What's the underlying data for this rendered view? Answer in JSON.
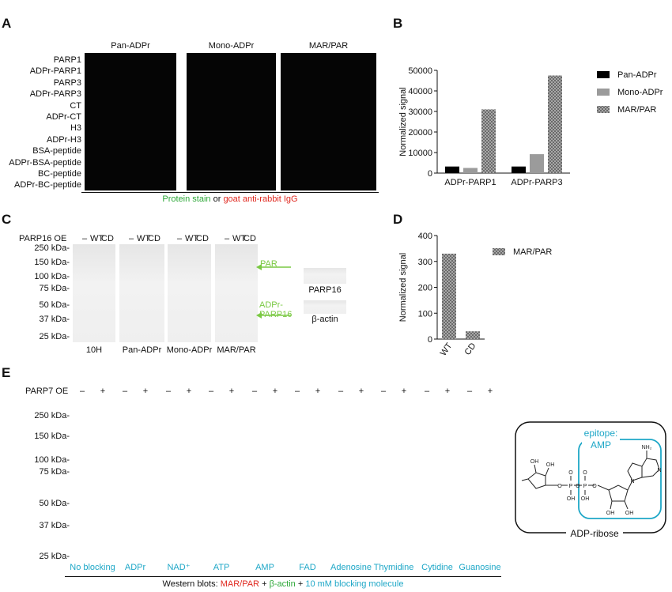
{
  "panel_letters": {
    "a": "A",
    "b": "B",
    "c": "C",
    "d": "D",
    "e": "E"
  },
  "panel_a": {
    "col_titles": [
      "Pan-ADPr",
      "Mono-ADPr",
      "MAR/PAR"
    ],
    "row_labels": [
      "PARP1",
      "ADPr-PARP1",
      "PARP3",
      "ADPr-PARP3",
      "CT",
      "ADPr-CT",
      "H3",
      "ADPr-H3",
      "BSA-peptide",
      "ADPr-BSA-peptide",
      "BC-peptide",
      "ADPr-BC-peptide"
    ],
    "caption_green": "Protein stain",
    "caption_mid": " or ",
    "caption_red": "goat anti-rabbit IgG",
    "colors": {
      "green": "#2fd12f",
      "red": "#ff2a1a"
    }
  },
  "chart_data": [
    {
      "type": "bar",
      "panel": "B",
      "categories": [
        "ADPr-PARP1",
        "ADPr-PARP3"
      ],
      "series": [
        {
          "name": "Pan-ADPr",
          "values": [
            3200,
            3200
          ]
        },
        {
          "name": "Mono-ADPr",
          "values": [
            2500,
            9200
          ]
        },
        {
          "name": "MAR/PAR",
          "values": [
            31000,
            47500
          ]
        }
      ],
      "ylabel": "Normalized signal",
      "ylim": [
        0,
        50000
      ],
      "yticks": [
        "0",
        "10000",
        "20000",
        "30000",
        "40000",
        "50000"
      ],
      "legend": "right"
    },
    {
      "type": "bar",
      "panel": "D",
      "categories": [
        "WT",
        "CD"
      ],
      "series": [
        {
          "name": "MAR/PAR",
          "values": [
            330,
            30
          ]
        }
      ],
      "ylabel": "Normalized signal",
      "ylim": [
        0,
        400
      ],
      "yticks": [
        "0",
        "100",
        "200",
        "300",
        "400"
      ],
      "legend": "right"
    }
  ],
  "panel_c": {
    "oe_label": "PARP16 OE",
    "lanes": [
      "–",
      "WT",
      "CD"
    ],
    "mw": [
      "250 kDa-",
      "150 kDa-",
      "100 kDa-",
      "75 kDa-",
      "50 kDa-",
      "37 kDa-",
      "25 kDa-"
    ],
    "blots": [
      "10H",
      "Pan-ADPr",
      "Mono-ADPr",
      "MAR/PAR"
    ],
    "arrow_par": "PAR",
    "arrow_adpr_1": "ADPr-",
    "arrow_adpr_2": "PARP16",
    "small_blot_1": "PARP16",
    "small_blot_2": "β-actin"
  },
  "panel_e": {
    "oe_label": "PARP7 OE",
    "lane_minus": "–",
    "lane_plus": "+",
    "mw": [
      "250 kDa-",
      "150 kDa-",
      "100 kDa-",
      "75 kDa-",
      "50 kDa-",
      "37 kDa-",
      "25 kDa-"
    ],
    "blocking": [
      "No blocking",
      "ADPr",
      "NAD⁺",
      "ATP",
      "AMP",
      "FAD",
      "Adenosine",
      "Thymidine",
      "Cytidine",
      "Guanosine"
    ],
    "caption_1": "Western blots: ",
    "caption_red": "MAR/PAR",
    "caption_2": " + ",
    "caption_green": "β-actin",
    "caption_3": " + ",
    "caption_cyan": "10 mM blocking molecule",
    "colors": {
      "red": "#ff2a1a",
      "green": "#2fe02f",
      "cyan": "#1ea7c7"
    }
  },
  "structure": {
    "epitope_line1": "epitope:",
    "epitope_line2": "AMP",
    "name": "ADP-ribose",
    "atoms": {
      "oh": "OH",
      "o": "O",
      "p": "P",
      "n": "N",
      "nh2": "NH₂"
    }
  }
}
